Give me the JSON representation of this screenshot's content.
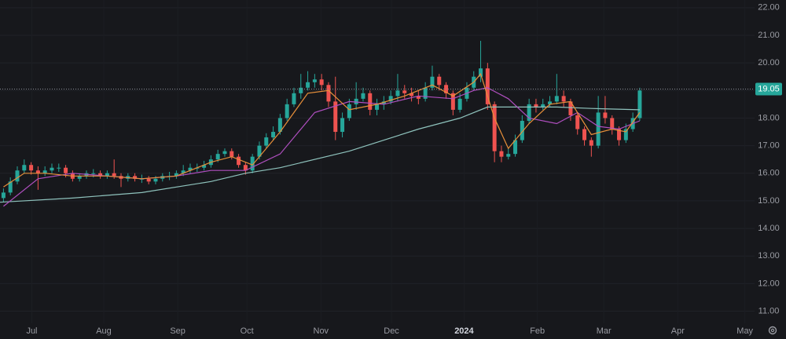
{
  "chart_data": {
    "type": "candlestick",
    "open": [
      15.1,
      15.3,
      15.7,
      16.1,
      16.3,
      16.1,
      16.0,
      16.1,
      16.2,
      16.2,
      16.0,
      15.8,
      15.9,
      16.0,
      16.0,
      15.9,
      16.0,
      15.9,
      15.8,
      15.9,
      15.8,
      15.8,
      15.7,
      15.8,
      15.9,
      15.9,
      16.0,
      16.1,
      16.2,
      16.2,
      16.3,
      16.5,
      16.7,
      16.8,
      16.6,
      16.3,
      16.1,
      16.6,
      17.0,
      17.3,
      17.5,
      18.0,
      18.5,
      18.9,
      19.1,
      19.3,
      19.4,
      19.2,
      18.6,
      17.5,
      18.0,
      18.5,
      18.7,
      18.9,
      18.3,
      18.5,
      18.6,
      18.8,
      19.0,
      18.9,
      18.8,
      18.7,
      19.1,
      19.5,
      19.2,
      18.9,
      18.3,
      18.7,
      19.1,
      19.5,
      19.8,
      18.5,
      16.8,
      16.6,
      16.7,
      17.2,
      17.9,
      18.5,
      18.4,
      18.5,
      18.6,
      18.8,
      18.6,
      18.1,
      17.6,
      17.2,
      17.0,
      18.2,
      18.0,
      17.6,
      17.2,
      17.6,
      18.0
    ],
    "high": [
      15.45,
      15.85,
      16.25,
      16.5,
      16.4,
      16.25,
      16.25,
      16.35,
      16.35,
      16.3,
      16.1,
      16.0,
      16.1,
      16.15,
      16.1,
      16.1,
      16.5,
      16.0,
      16.0,
      16.0,
      15.95,
      15.9,
      15.9,
      16.0,
      16.05,
      16.1,
      16.3,
      16.35,
      16.35,
      16.45,
      16.65,
      16.85,
      16.9,
      16.9,
      16.7,
      16.4,
      16.7,
      17.15,
      17.45,
      17.7,
      18.15,
      18.7,
      19.1,
      19.6,
      19.7,
      19.6,
      19.6,
      19.3,
      19.5,
      18.2,
      18.7,
      19.3,
      19.1,
      19.0,
      18.7,
      18.8,
      19.0,
      19.6,
      19.2,
      19.1,
      19.0,
      19.3,
      19.9,
      19.6,
      19.3,
      19.0,
      18.9,
      19.3,
      19.7,
      20.8,
      20.0,
      18.6,
      17.0,
      16.9,
      17.4,
      18.1,
      18.7,
      18.7,
      18.7,
      18.8,
      19.6,
      19.0,
      18.7,
      18.2,
      17.7,
      17.3,
      18.8,
      18.8,
      18.1,
      17.7,
      17.8,
      18.2,
      19.1
    ],
    "low": [
      14.95,
      15.2,
      15.6,
      16.0,
      15.95,
      15.4,
      15.9,
      16.0,
      16.05,
      15.85,
      15.7,
      15.7,
      15.8,
      15.85,
      15.8,
      15.8,
      15.8,
      15.5,
      15.7,
      15.7,
      15.65,
      15.6,
      15.6,
      15.7,
      15.75,
      15.8,
      15.9,
      16.0,
      16.05,
      16.1,
      16.2,
      16.4,
      16.6,
      16.5,
      16.2,
      15.95,
      16.0,
      16.5,
      16.9,
      17.2,
      17.4,
      17.9,
      18.4,
      18.7,
      19.0,
      19.1,
      19.0,
      18.4,
      17.2,
      17.3,
      17.9,
      18.3,
      18.6,
      18.1,
      18.1,
      18.3,
      18.5,
      18.6,
      18.7,
      18.6,
      18.5,
      18.6,
      19.0,
      19.0,
      18.7,
      18.1,
      18.2,
      18.6,
      19.0,
      19.3,
      18.3,
      16.4,
      16.4,
      16.5,
      16.6,
      17.1,
      17.8,
      18.2,
      18.3,
      18.4,
      18.5,
      18.4,
      17.9,
      17.4,
      17.0,
      16.6,
      16.9,
      17.8,
      17.4,
      17.0,
      17.1,
      17.5,
      17.9
    ],
    "close": [
      15.3,
      15.7,
      16.1,
      16.3,
      16.1,
      16.0,
      16.1,
      16.2,
      16.2,
      16.0,
      15.8,
      15.9,
      16.0,
      16.0,
      15.9,
      16.0,
      15.9,
      15.8,
      15.9,
      15.8,
      15.8,
      15.7,
      15.8,
      15.9,
      15.9,
      16.0,
      16.1,
      16.2,
      16.2,
      16.3,
      16.5,
      16.7,
      16.8,
      16.6,
      16.3,
      16.1,
      16.6,
      17.0,
      17.3,
      17.5,
      18.0,
      18.5,
      18.9,
      19.1,
      19.3,
      19.4,
      19.2,
      18.6,
      17.5,
      18.0,
      18.5,
      18.7,
      18.9,
      18.3,
      18.5,
      18.6,
      18.8,
      19.0,
      18.9,
      18.8,
      18.7,
      19.1,
      19.5,
      19.2,
      18.9,
      18.3,
      18.7,
      19.1,
      19.5,
      19.8,
      18.5,
      16.8,
      16.6,
      16.7,
      17.2,
      17.9,
      18.5,
      18.4,
      18.5,
      18.6,
      18.8,
      18.6,
      18.1,
      17.6,
      17.2,
      17.0,
      18.2,
      18.0,
      17.6,
      17.2,
      17.6,
      18.0,
      19.0
    ],
    "up_color": "#26a69a",
    "down_color": "#ef5350",
    "lines": [
      {
        "color": "#8fc3bd",
        "x": [
          -0.5,
          10,
          20,
          30,
          35,
          40,
          50,
          60,
          66,
          70,
          75,
          80,
          85,
          92
        ],
        "values": [
          14.95,
          15.1,
          15.3,
          15.7,
          16.0,
          16.2,
          16.8,
          17.6,
          18.0,
          18.4,
          18.4,
          18.4,
          18.35,
          18.3
        ]
      },
      {
        "color": "#b04fc0",
        "x": [
          0,
          5,
          10,
          15,
          20,
          25,
          30,
          35,
          40,
          45,
          50,
          55,
          60,
          65,
          68,
          70,
          73,
          76,
          80,
          83,
          86,
          89,
          92
        ],
        "values": [
          14.8,
          15.8,
          16.0,
          15.9,
          15.8,
          15.9,
          16.1,
          16.1,
          16.7,
          18.2,
          18.6,
          18.5,
          18.8,
          18.7,
          19.0,
          19.1,
          18.7,
          18.0,
          17.8,
          18.2,
          17.7,
          17.6,
          17.9
        ]
      },
      {
        "color": "#e8903a",
        "x": [
          0,
          3,
          6,
          10,
          15,
          20,
          25,
          30,
          33,
          36,
          40,
          44,
          47,
          50,
          54,
          58,
          62,
          65,
          68,
          69,
          71,
          73,
          76,
          79,
          82,
          85,
          88,
          90,
          92
        ],
        "values": [
          15.5,
          16.0,
          16.0,
          15.9,
          15.9,
          15.8,
          15.9,
          16.4,
          16.6,
          16.3,
          17.5,
          18.9,
          19.0,
          18.3,
          18.5,
          18.8,
          19.2,
          18.8,
          19.3,
          19.6,
          18.0,
          16.9,
          17.8,
          18.5,
          18.6,
          17.4,
          17.6,
          17.5,
          18.2
        ]
      }
    ],
    "xlim": [
      -0.5,
      108.6
    ],
    "xticks": [
      {
        "value": 4.1,
        "label": "Jul"
      },
      {
        "value": 14.5,
        "label": "Aug"
      },
      {
        "value": 25.2,
        "label": "Sep"
      },
      {
        "value": 35.2,
        "label": "Oct"
      },
      {
        "value": 45.9,
        "label": "Nov"
      },
      {
        "value": 56.1,
        "label": "Dec"
      },
      {
        "value": 66.6,
        "label": "2024"
      },
      {
        "value": 77.2,
        "label": "Feb"
      },
      {
        "value": 86.8,
        "label": "Mar"
      },
      {
        "value": 97.5,
        "label": "Apr"
      },
      {
        "value": 107.2,
        "label": "May"
      }
    ],
    "ylim": [
      10.56,
      22.28
    ],
    "yticks": [
      {
        "value": 11,
        "label": "11.00"
      },
      {
        "value": 12,
        "label": "12.00"
      },
      {
        "value": 13,
        "label": "13.00"
      },
      {
        "value": 14,
        "label": "14.00"
      },
      {
        "value": 15,
        "label": "15.00"
      },
      {
        "value": 16,
        "label": "16.00"
      },
      {
        "value": 17,
        "label": "17.00"
      },
      {
        "value": 18,
        "label": "18.00"
      },
      {
        "value": 19,
        "label": "19.00"
      },
      {
        "value": 20,
        "label": "20.00"
      },
      {
        "value": 21,
        "label": "21.00"
      },
      {
        "value": 22,
        "label": "22.00"
      }
    ],
    "price_line": {
      "value": 19.05,
      "label": "19.05",
      "color": "#26a69a"
    },
    "grid": true
  }
}
